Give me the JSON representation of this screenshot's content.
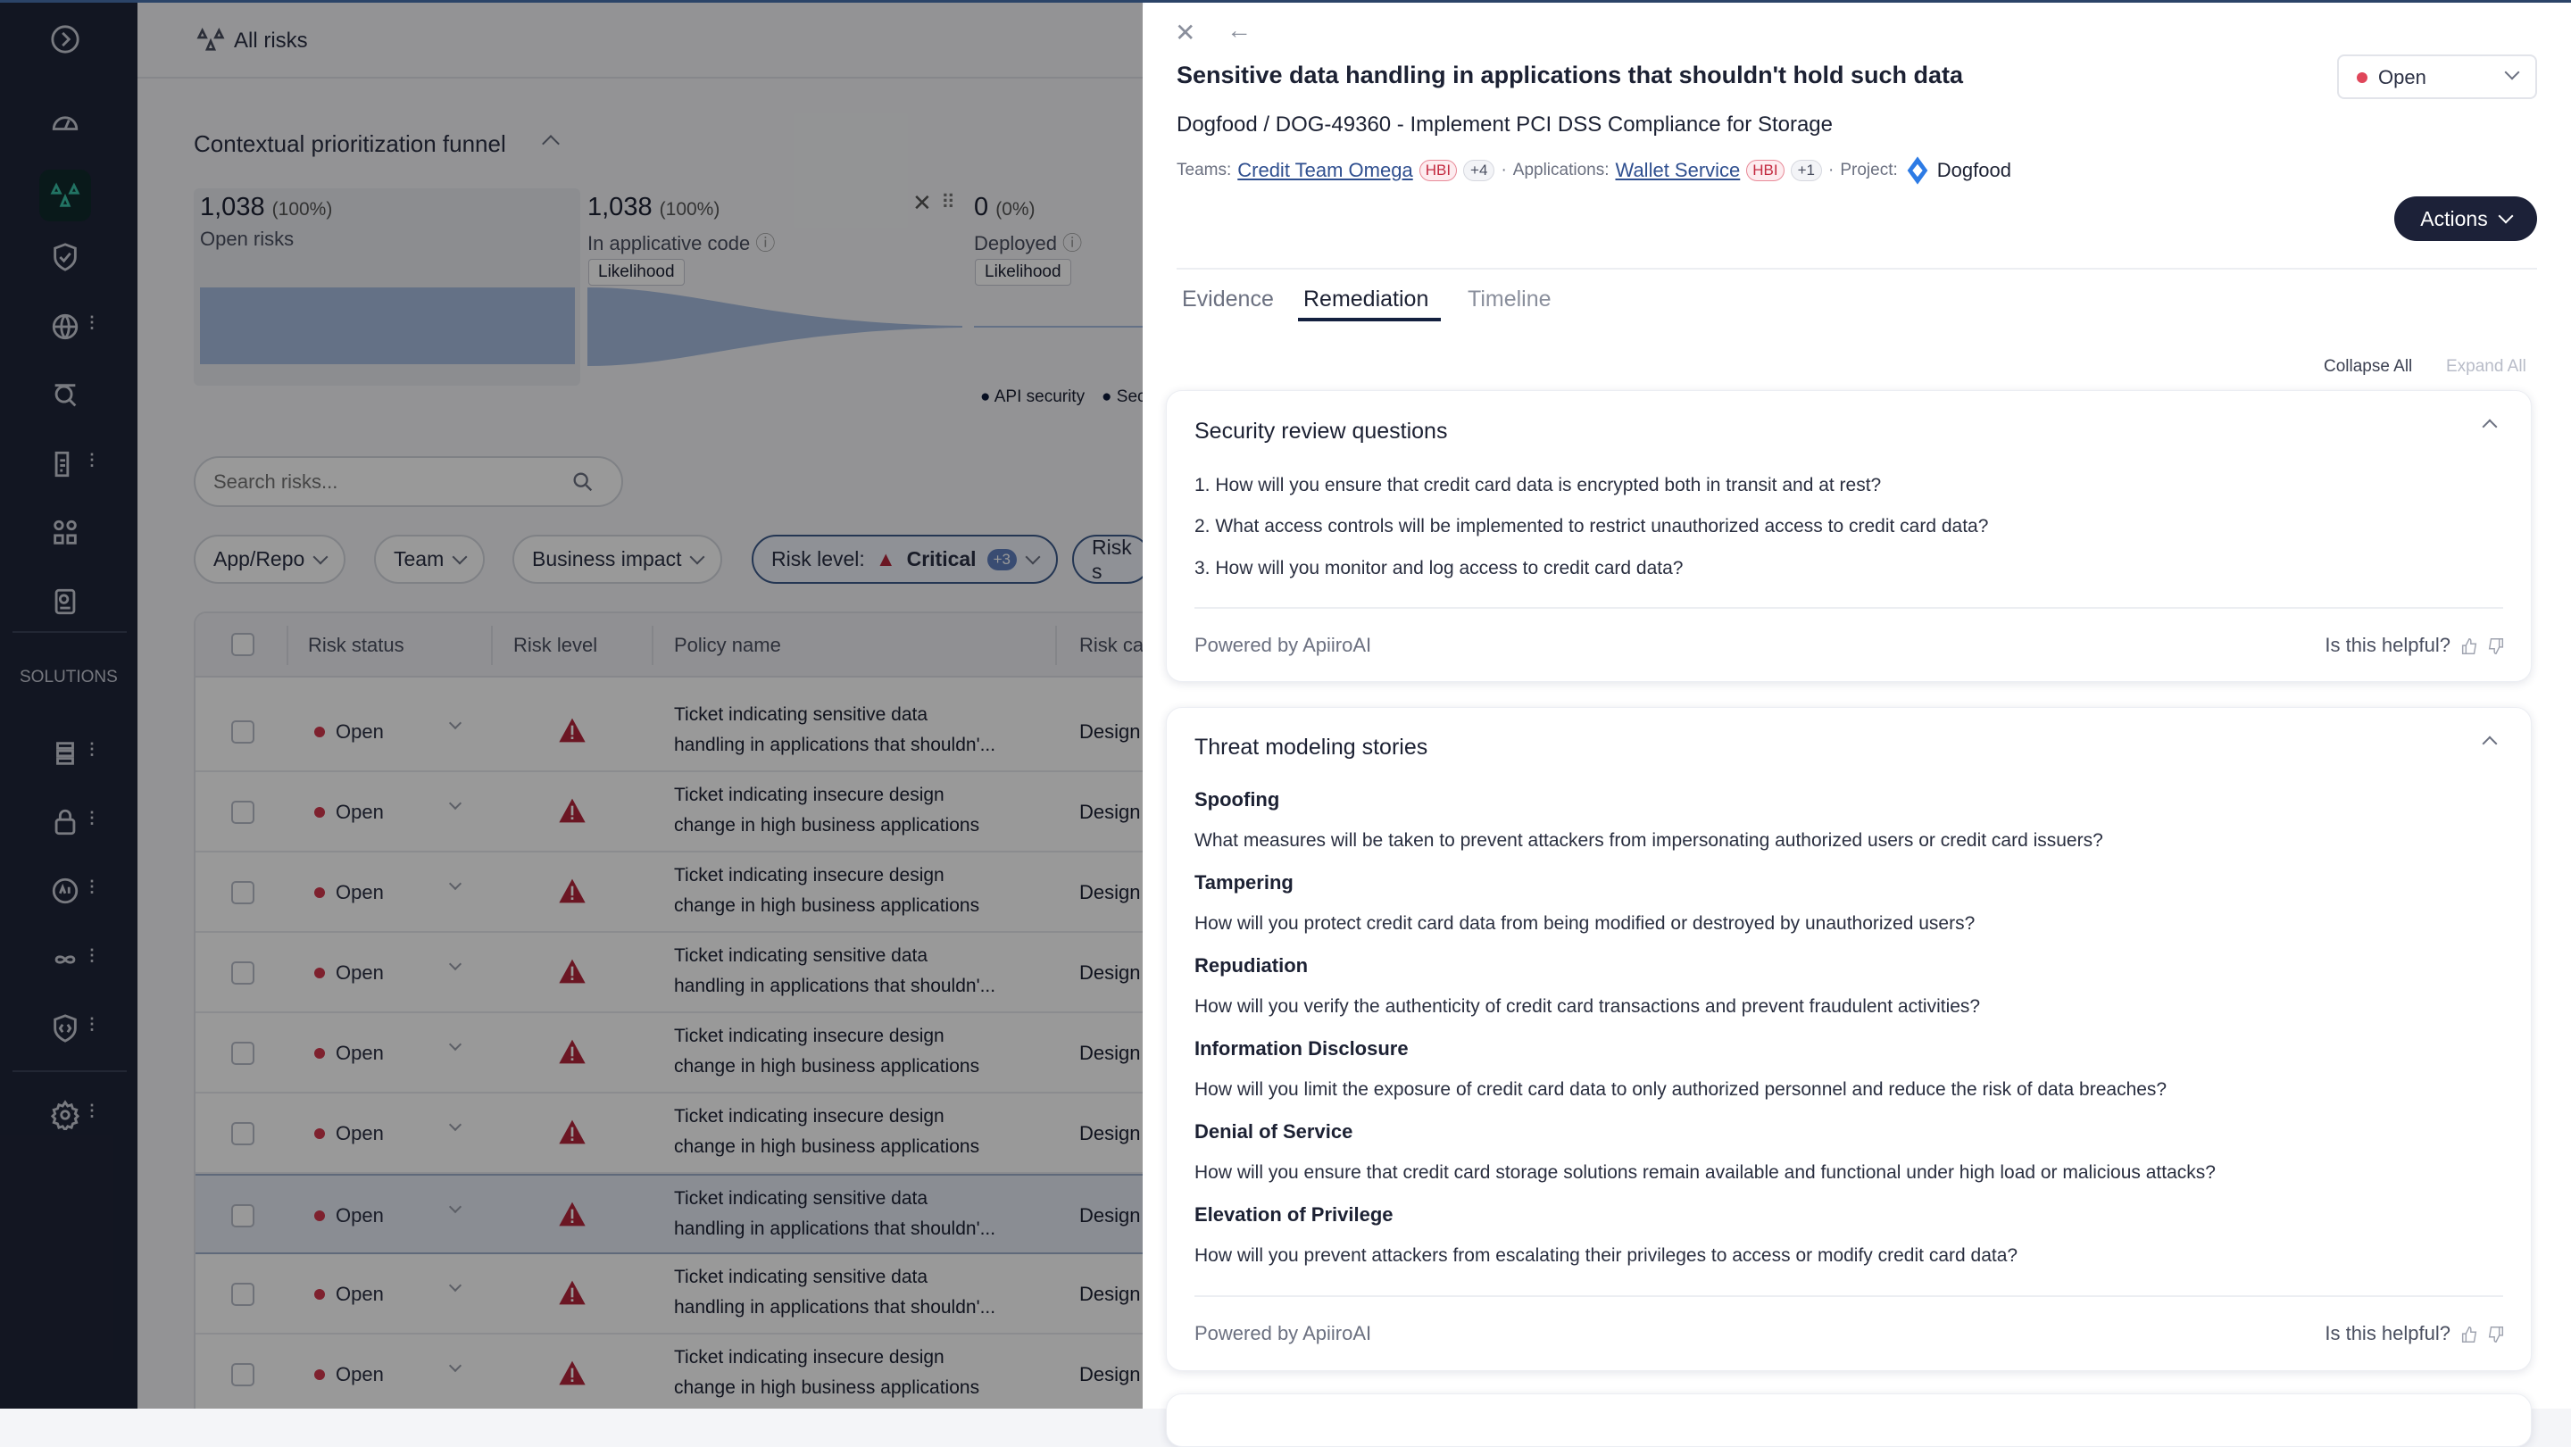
{
  "sidebar": {
    "solutions_label": "SOLUTIONS",
    "icons": [
      "expand-chevron-icon",
      "dashboard-gauge-icon",
      "risks-icon",
      "shield-check-icon",
      "globe-icon",
      "inventory-search-icon",
      "clipboard-icon",
      "workflow-icon",
      "reports-icon",
      "pipeline-icon",
      "lock-icon",
      "api-gear-icon",
      "infinity-icon",
      "code-shield-icon",
      "settings-gear-icon"
    ],
    "active": "risks-icon"
  },
  "header": {
    "title": "All risks"
  },
  "funnel": {
    "title": "Contextual prioritization funnel",
    "stages": [
      {
        "count": "1,038",
        "pct": "(100%)",
        "label": "Open risks",
        "fill": 1.0
      },
      {
        "count": "1,038",
        "pct": "(100%)",
        "label": "In applicative code",
        "tag": "Likelihood",
        "fill": 1.0
      },
      {
        "count": "0",
        "pct": "(0%)",
        "label": "Deployed",
        "tag": "Likelihood",
        "fill": 0.0
      }
    ],
    "legend": [
      "API security",
      "Sec"
    ]
  },
  "search": {
    "placeholder": "Search risks..."
  },
  "filters": [
    {
      "label": "App/Repo"
    },
    {
      "label": "Team"
    },
    {
      "label": "Business impact"
    },
    {
      "prefix": "Risk level:",
      "value": "Critical",
      "extra": "+3"
    },
    {
      "label": "Risk s"
    }
  ],
  "table": {
    "columns": [
      "Risk status",
      "Risk level",
      "Policy name",
      "Risk ca"
    ],
    "rows": [
      {
        "status": "Open",
        "policy1": "Ticket indicating sensitive data",
        "policy2": "handling in applications that shouldn'...",
        "category": "Design"
      },
      {
        "status": "Open",
        "policy1": "Ticket indicating insecure design",
        "policy2": "change in high business applications",
        "category": "Design"
      },
      {
        "status": "Open",
        "policy1": "Ticket indicating insecure design",
        "policy2": "change in high business applications",
        "category": "Design"
      },
      {
        "status": "Open",
        "policy1": "Ticket indicating sensitive data",
        "policy2": "handling in applications that shouldn'...",
        "category": "Design"
      },
      {
        "status": "Open",
        "policy1": "Ticket indicating insecure design",
        "policy2": "change in high business applications",
        "category": "Design"
      },
      {
        "status": "Open",
        "policy1": "Ticket indicating insecure design",
        "policy2": "change in high business applications",
        "category": "Design"
      },
      {
        "status": "Open",
        "policy1": "Ticket indicating sensitive data",
        "policy2": "handling in applications that shouldn'...",
        "category": "Design",
        "selected": true
      },
      {
        "status": "Open",
        "policy1": "Ticket indicating sensitive data",
        "policy2": "handling in applications that shouldn'...",
        "category": "Design"
      },
      {
        "status": "Open",
        "policy1": "Ticket indicating insecure design",
        "policy2": "change in high business applications",
        "category": "Design"
      }
    ]
  },
  "drawer": {
    "title": "Sensitive data handling in applications that shouldn't hold such data",
    "status": "Open",
    "status_color": "#e0465a",
    "subtitle": "Dogfood / DOG-49360 - Implement PCI DSS Compliance for Storage",
    "meta": {
      "teams_label": "Teams:",
      "team": "Credit Team Omega",
      "team_badge": "HBI",
      "team_more": "+4",
      "apps_label": "Applications:",
      "app": "Wallet Service",
      "app_badge": "HBI",
      "app_more": "+1",
      "project_label": "Project:",
      "project": "Dogfood"
    },
    "actions_label": "Actions",
    "tabs": [
      "Evidence",
      "Remediation",
      "Timeline"
    ],
    "active_tab": "Remediation",
    "collapse_all": "Collapse All",
    "expand_all": "Expand All",
    "security_review": {
      "title": "Security review questions",
      "questions": [
        "1. How will you ensure that credit card data is encrypted both in transit and at rest?",
        "2. What access controls will be implemented to restrict unauthorized access to credit card data?",
        "3. How will you monitor and log access to credit card data?"
      ],
      "powered_by": "Powered by ApiiroAI",
      "helpful": "Is this helpful?"
    },
    "threat_modeling": {
      "title": "Threat modeling stories",
      "stories": [
        {
          "heading": "Spoofing",
          "text": "What measures will be taken to prevent attackers from impersonating authorized users or credit card issuers?"
        },
        {
          "heading": "Tampering",
          "text": "How will you protect credit card data from being modified or destroyed by unauthorized users?"
        },
        {
          "heading": "Repudiation",
          "text": "How will you verify the authenticity of credit card transactions and prevent fraudulent activities?"
        },
        {
          "heading": "Information Disclosure",
          "text": "How will you limit the exposure of credit card data to only authorized personnel and reduce the risk of data breaches?"
        },
        {
          "heading": "Denial of Service",
          "text": "How will you ensure that credit card storage solutions remain available and functional under high load or malicious attacks?"
        },
        {
          "heading": "Elevation of Privilege",
          "text": "How will you prevent attackers from escalating their privileges to access or modify credit card data?"
        }
      ],
      "powered_by": "Powered by ApiiroAI",
      "helpful": "Is this helpful?"
    }
  }
}
